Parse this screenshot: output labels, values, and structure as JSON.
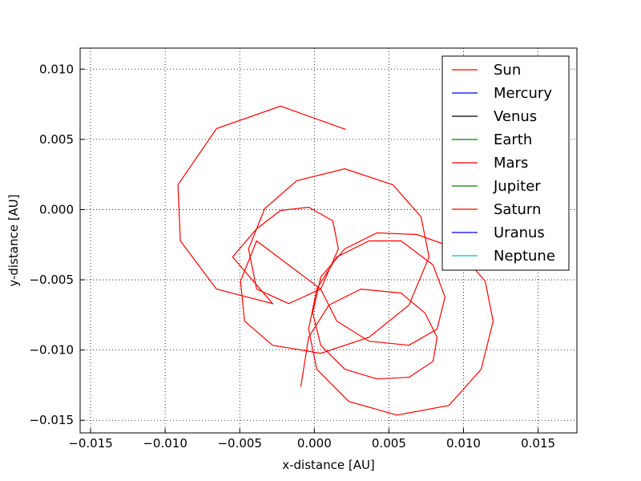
{
  "chart_data": {
    "type": "line",
    "xlabel": "x-distance [AU]",
    "ylabel": "y-distance [AU]",
    "xlim": [
      -0.0157,
      0.0176
    ],
    "ylim": [
      -0.0159,
      0.0115
    ],
    "xticks": [
      {
        "value": -0.015,
        "label": "−0.015"
      },
      {
        "value": -0.01,
        "label": "−0.010"
      },
      {
        "value": -0.005,
        "label": "−0.005"
      },
      {
        "value": 0,
        "label": "0.000"
      },
      {
        "value": 0.005,
        "label": "0.005"
      },
      {
        "value": 0.01,
        "label": "0.010"
      },
      {
        "value": 0.015,
        "label": "0.015"
      }
    ],
    "yticks": [
      {
        "value": -0.015,
        "label": "−0.015"
      },
      {
        "value": -0.01,
        "label": "−0.010"
      },
      {
        "value": -0.005,
        "label": "−0.005"
      },
      {
        "value": 0,
        "label": "0.000"
      },
      {
        "value": 0.005,
        "label": "0.005"
      },
      {
        "value": 0.01,
        "label": "0.010"
      }
    ],
    "grid": true,
    "legend": "upper right",
    "series": [
      {
        "name": "Sun",
        "color": "#ff0000",
        "x": [
          -0.00091,
          -0.00038,
          0.00097,
          0.00312,
          0.00581,
          0.00742,
          0.00823,
          0.00796,
          0.00634,
          0.00419,
          0.00204,
          0.00043,
          -0.00011,
          0.00043,
          0.00204,
          0.00419,
          0.00688,
          0.00957,
          0.01145,
          0.01199,
          0.01118,
          0.00903,
          0.00554,
          0.00231,
          0.00016,
          -0.00038,
          0.00016,
          0.00151,
          0.00366,
          0.00581,
          0.00796,
          0.00876,
          0.00823,
          0.00634,
          0.00366,
          0.00151,
          0.00043,
          -0.00387,
          -0.00495,
          -0.00468,
          -0.0028,
          0.00043,
          0.00366,
          0.00634,
          0.00769,
          0.00715,
          0.00527,
          0.00204,
          -0.00118,
          -0.00333,
          -0.00441,
          -0.00387,
          -0.00172,
          0.00043,
          0.00161,
          0.00124,
          -0.00038,
          -0.00226,
          -0.00387,
          -0.00548,
          -0.0028,
          -0.00656,
          -0.00898,
          -0.00914,
          -0.00656,
          -0.00226,
          0.0021
        ],
        "y": [
          -0.01263,
          -0.00909,
          -0.0068,
          -0.00566,
          -0.00594,
          -0.00737,
          -0.00909,
          -0.0108,
          -0.01194,
          -0.01206,
          -0.01137,
          -0.00966,
          -0.00737,
          -0.0048,
          -0.0028,
          -0.00166,
          -0.00177,
          -0.0028,
          -0.00509,
          -0.00794,
          -0.01137,
          -0.01394,
          -0.01463,
          -0.01366,
          -0.01137,
          -0.00851,
          -0.00566,
          -0.00337,
          -0.00223,
          -0.00223,
          -0.00394,
          -0.00623,
          -0.00851,
          -0.00966,
          -0.00937,
          -0.00794,
          -0.00566,
          -0.00223,
          -0.00509,
          -0.00794,
          -0.00966,
          -0.01023,
          -0.00909,
          -0.0068,
          -0.00337,
          -0.00051,
          0.00177,
          0.00291,
          0.00206,
          6e-05,
          -0.0028,
          -0.00566,
          -0.00669,
          -0.00566,
          -0.0028,
          -0.0008,
          0.00017,
          -6e-05,
          -0.00137,
          -0.00337,
          -0.00669,
          -0.00566,
          -0.00223,
          0.00177,
          0.00577,
          0.00737,
          0.00571
        ]
      },
      {
        "name": "Mercury",
        "color": "#0000ff",
        "x": [],
        "y": []
      },
      {
        "name": "Venus",
        "color": "#000000",
        "x": [],
        "y": []
      },
      {
        "name": "Earth",
        "color": "#008000",
        "x": [],
        "y": []
      },
      {
        "name": "Mars",
        "color": "#ff0000",
        "x": [],
        "y": []
      },
      {
        "name": "Jupiter",
        "color": "#008000",
        "x": [],
        "y": []
      },
      {
        "name": "Saturn",
        "color": "#ff0000",
        "x": [],
        "y": []
      },
      {
        "name": "Uranus",
        "color": "#0000ff",
        "x": [],
        "y": []
      },
      {
        "name": "Neptune",
        "color": "#00bfbf",
        "x": [],
        "y": []
      }
    ]
  }
}
